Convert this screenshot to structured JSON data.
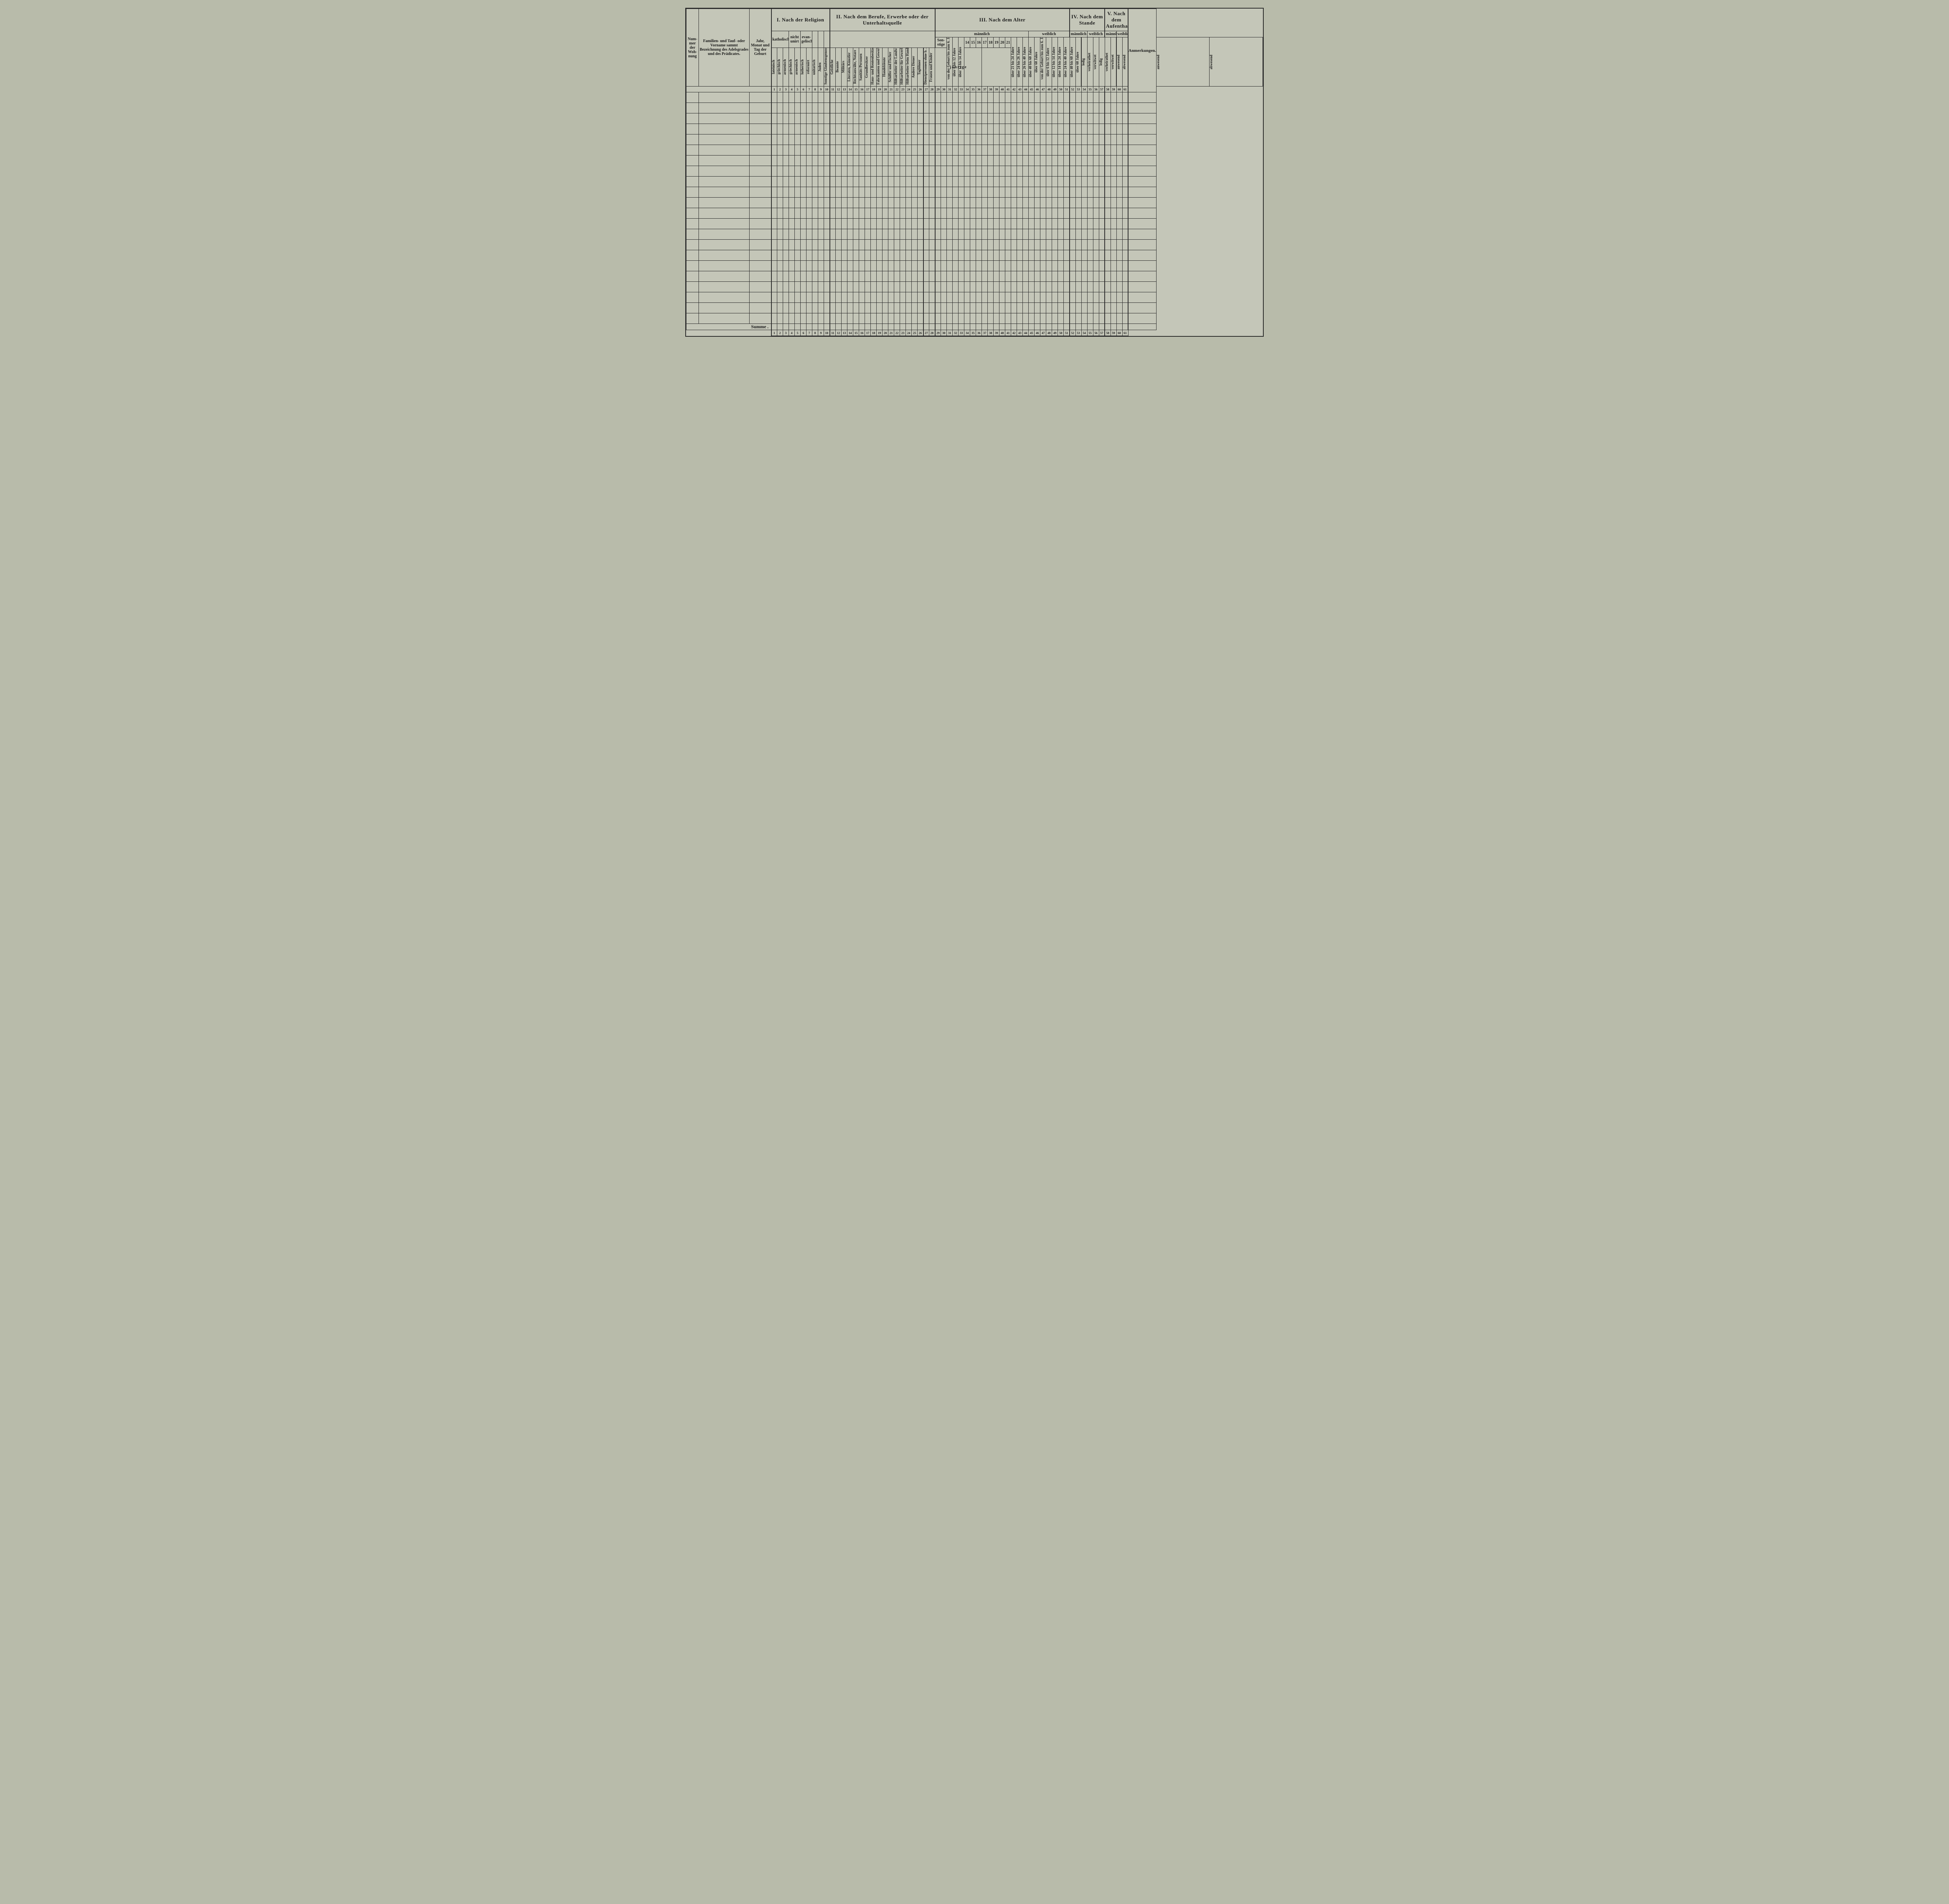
{
  "background_color": "#b8bbaa",
  "paper_color": "#c4c6b8",
  "line_color": "#2a2a2a",
  "text_color": "#1a1a1a",
  "font_family": "Times New Roman",
  "left_columns": {
    "nummer": "Num-\nmer\nder\nWoh-\nnung",
    "familien": "Familien-\nund Tauf- oder Vorname\nsammt\nBezeichnung des Adelsgrades\nund des Prädicates.",
    "jahr": "Jahr, Monat\nund\nTag\nder Geburt"
  },
  "sections": {
    "I": "I. Nach der Religion",
    "II": "II. Nach dem Berufe, Erwerbe oder der\nUnterhaltsquelle",
    "III": "III. Nach dem Alter",
    "IV": "IV. Nach dem Stande",
    "V": "V. Nach dem\nAufenthalte"
  },
  "religion_groups": {
    "katholisch": "katholisch",
    "nicht_unirt": "nicht\nunirt",
    "evangelisch": "evan-\ngelisch"
  },
  "alter_groups": {
    "mannlich": "männlich",
    "weiblich": "weiblich",
    "sonstige": "Son-\nstige",
    "jahrige": "jährige"
  },
  "stand_groups": {
    "mannlich": "männlich",
    "weiblich": "weiblich"
  },
  "religion_cols": [
    "lateinisch",
    "griechisch",
    "armenisch",
    "griechisch",
    "armenisch",
    "lutherisch",
    "reformirt",
    "unitarisch",
    "Juden",
    "Sonstige Glaubensgenossen"
  ],
  "beruf_cols": [
    "Geistliche",
    "Beamte",
    "Militärs",
    "Literaten, Künstler",
    "Rechtsanwälte, Notare",
    "Sanitäts-Personen",
    "Grundbesitzer",
    "Haus- und Rentenbesitzer",
    "Fabrikanten und Gewerbsleute",
    "Handelsleute",
    "Schiffer und Fischer",
    "Hilfsarbeiter der Landwirthschaft",
    "Hilfsarbeiter für Gewerbe",
    "Hilfsarbeiter beim Handel",
    "Andere Diener",
    "Taglöhner",
    "Dienstpersonen ohne b. J.",
    "Frauen und Kinder"
  ],
  "alter_cols_male_start": [
    "von der Geburt bis zum 6. Jahre",
    "über 6 bis 12 Jahre",
    "über 12 bis 14 Jahre"
  ],
  "alter_cols_nums": [
    "14",
    "15",
    "16",
    "17",
    "18",
    "19",
    "20",
    "21"
  ],
  "alter_cols_male_end": [
    "über 21 bis 24 Jahre",
    "über 24 bis 26 Jahre",
    "über 26 bis 40 Jahre",
    "über 40 bis 60 Jahre",
    "über 60 Jahre"
  ],
  "alter_cols_female": [
    "von der Geburt bis zum 6. Jahre",
    "über 6 bis 12 Jahre",
    "über 12 bis 14 Jahre",
    "über 14 bis 24 Jahre",
    "über 24 bis 40 Jahre",
    "über 40 bis 60 Jahre",
    "über 60 Jahre"
  ],
  "stand_cols": [
    "ledig",
    "verheirathet",
    "verwitwet",
    "ledig",
    "verheirathet",
    "verwitwet"
  ],
  "aufenthalt_cols": [
    "anwesend",
    "abwesend",
    "anwesend",
    "abwesend"
  ],
  "anmerkungen": "Anmerkungen.",
  "summe": "Summe .",
  "column_numbers": [
    "1",
    "2",
    "3",
    "4",
    "5",
    "6",
    "7",
    "8",
    "9",
    "10",
    "11",
    "12",
    "13",
    "14",
    "15",
    "16",
    "17",
    "18",
    "19",
    "20",
    "21",
    "22",
    "23",
    "24",
    "25",
    "26",
    "27",
    "28",
    "29",
    "30",
    "31",
    "32",
    "33",
    "34",
    "35",
    "36",
    "37",
    "38",
    "39",
    "40",
    "41",
    "42",
    "43",
    "44",
    "45",
    "46",
    "47",
    "48",
    "49",
    "50",
    "51",
    "52",
    "53",
    "54",
    "55",
    "56",
    "57",
    "58",
    "59",
    "60",
    "61"
  ],
  "data_rows": 22
}
